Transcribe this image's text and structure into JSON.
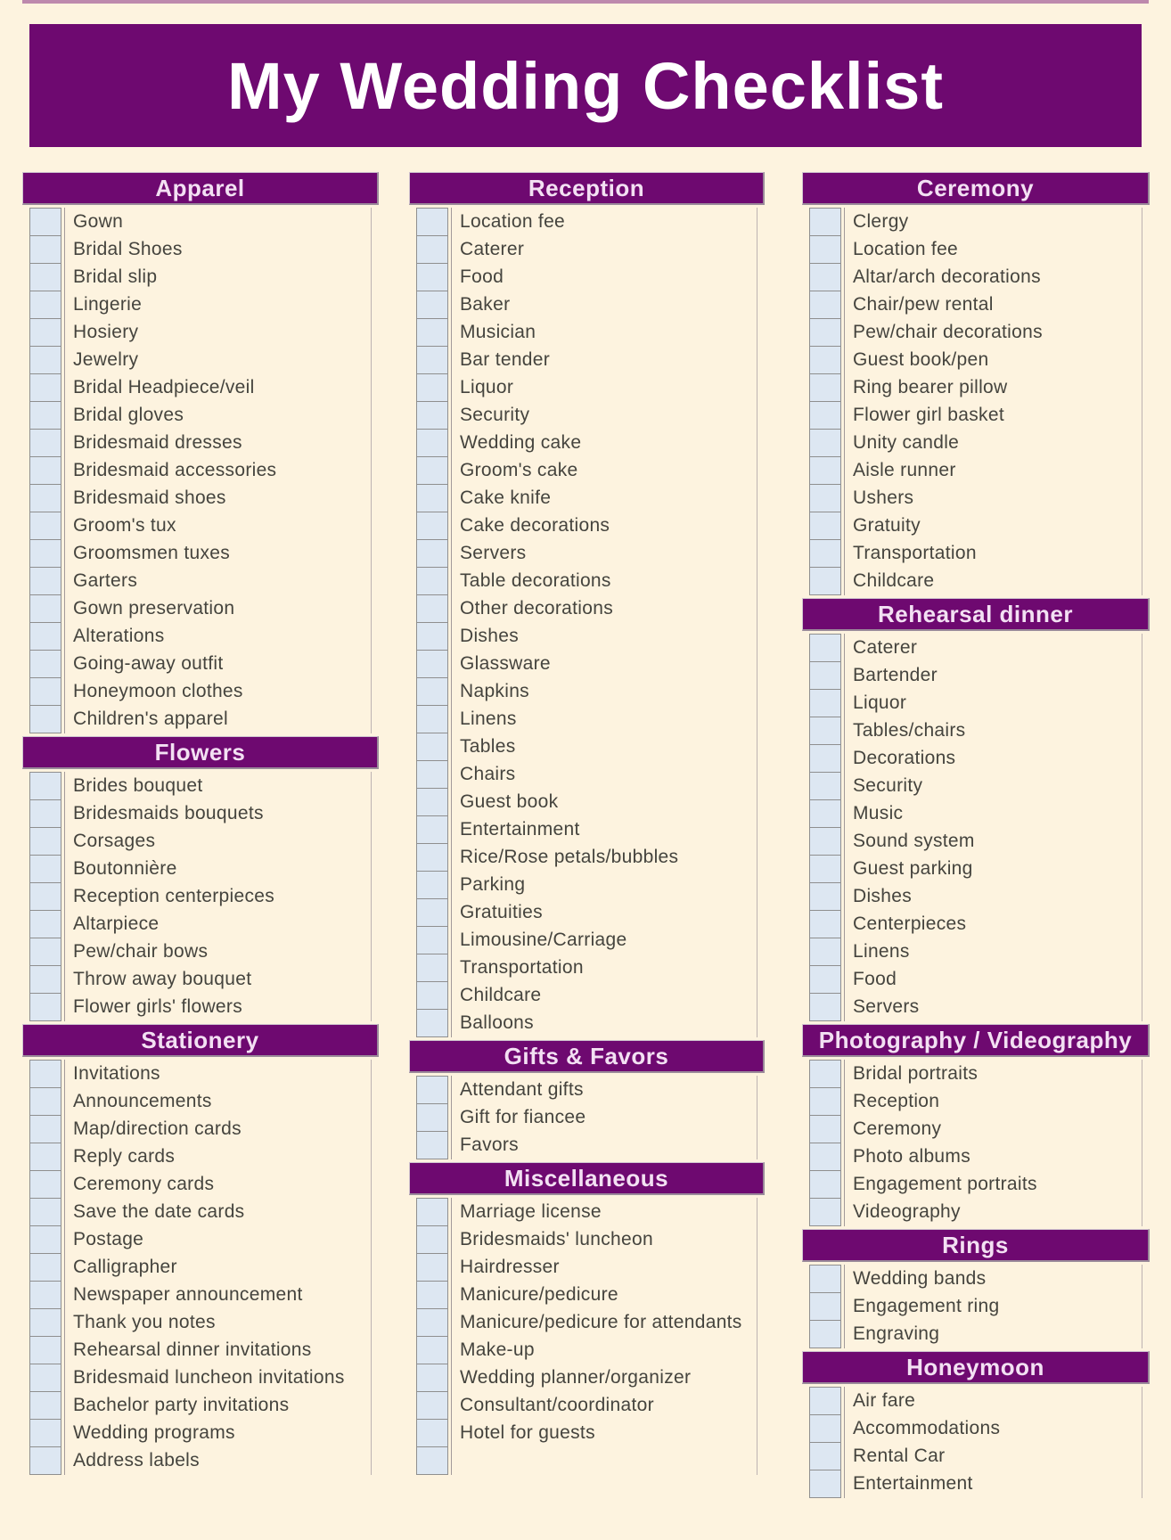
{
  "page": {
    "title": "My Wedding Checklist",
    "background_color": "#fdf3df",
    "accent_purple": "#6e0970",
    "header_text_color": "#f3e0f3",
    "checkbox_fill": "#dde7f2",
    "item_text_color": "#45443e"
  },
  "columns": [
    {
      "sections": [
        {
          "title": "Apparel",
          "items": [
            "Gown",
            "Bridal Shoes",
            "Bridal slip",
            "Lingerie",
            "Hosiery",
            "Jewelry",
            "Bridal Headpiece/veil",
            "Bridal gloves",
            "Bridesmaid dresses",
            "Bridesmaid accessories",
            "Bridesmaid shoes",
            "Groom's tux",
            "Groomsmen tuxes",
            "Garters",
            "Gown preservation",
            "Alterations",
            "Going-away outfit",
            "Honeymoon clothes",
            "Children's apparel"
          ]
        },
        {
          "title": "Flowers",
          "items": [
            "Brides bouquet",
            "Bridesmaids bouquets",
            "Corsages",
            "Boutonnière",
            "Reception centerpieces",
            "Altarpiece",
            "Pew/chair bows",
            "Throw away bouquet",
            "Flower girls' flowers"
          ]
        },
        {
          "title": "Stationery",
          "items": [
            "Invitations",
            "Announcements",
            "Map/direction cards",
            "Reply cards",
            "Ceremony cards",
            "Save the date cards",
            "Postage",
            "Calligrapher",
            "Newspaper announcement",
            "Thank you notes",
            "Rehearsal dinner invitations",
            "Bridesmaid luncheon invitations",
            "Bachelor party invitations",
            "Wedding programs",
            "Address labels"
          ]
        }
      ]
    },
    {
      "sections": [
        {
          "title": "Reception",
          "items": [
            "Location fee",
            "Caterer",
            "Food",
            "Baker",
            "Musician",
            "Bar tender",
            "Liquor",
            "Security",
            "Wedding cake",
            "Groom's cake",
            "Cake knife",
            "Cake decorations",
            "Servers",
            "Table decorations",
            "Other decorations",
            "Dishes",
            "Glassware",
            "Napkins",
            "Linens",
            "Tables",
            "Chairs",
            "Guest book",
            "Entertainment",
            "Rice/Rose petals/bubbles",
            "Parking",
            "Gratuities",
            "Limousine/Carriage",
            "Transportation",
            "Childcare",
            "Balloons"
          ]
        },
        {
          "title": "Gifts & Favors",
          "items": [
            "Attendant gifts",
            "Gift for fiancee",
            "Favors"
          ]
        },
        {
          "title": "Miscellaneous",
          "items": [
            "Marriage license",
            "Bridesmaids' luncheon",
            "Hairdresser",
            "Manicure/pedicure",
            "Manicure/pedicure for attendants",
            "Make-up",
            "Wedding planner/organizer",
            "Consultant/coordinator",
            "Hotel for guests",
            ""
          ]
        }
      ]
    },
    {
      "sections": [
        {
          "title": "Ceremony",
          "items": [
            "Clergy",
            "Location fee",
            "Altar/arch decorations",
            "Chair/pew rental",
            "Pew/chair decorations",
            "Guest book/pen",
            "Ring bearer pillow",
            "Flower girl basket",
            "Unity candle",
            "Aisle runner",
            "Ushers",
            "Gratuity",
            "Transportation",
            "Childcare"
          ]
        },
        {
          "title": "Rehearsal dinner",
          "items": [
            "Caterer",
            "Bartender",
            "Liquor",
            "Tables/chairs",
            "Decorations",
            "Security",
            "Music",
            "Sound system",
            "Guest parking",
            "Dishes",
            "Centerpieces",
            "Linens",
            "Food",
            "Servers"
          ]
        },
        {
          "title": "Photography / Videography",
          "items": [
            "Bridal portraits",
            "Reception",
            "Ceremony",
            "Photo albums",
            "Engagement portraits",
            "Videography"
          ]
        },
        {
          "title": "Rings",
          "items": [
            "Wedding bands",
            "Engagement ring",
            "Engraving"
          ]
        },
        {
          "title": "Honeymoon",
          "items": [
            "Air fare",
            "Accommodations",
            "Rental Car",
            "Entertainment"
          ]
        }
      ]
    }
  ]
}
